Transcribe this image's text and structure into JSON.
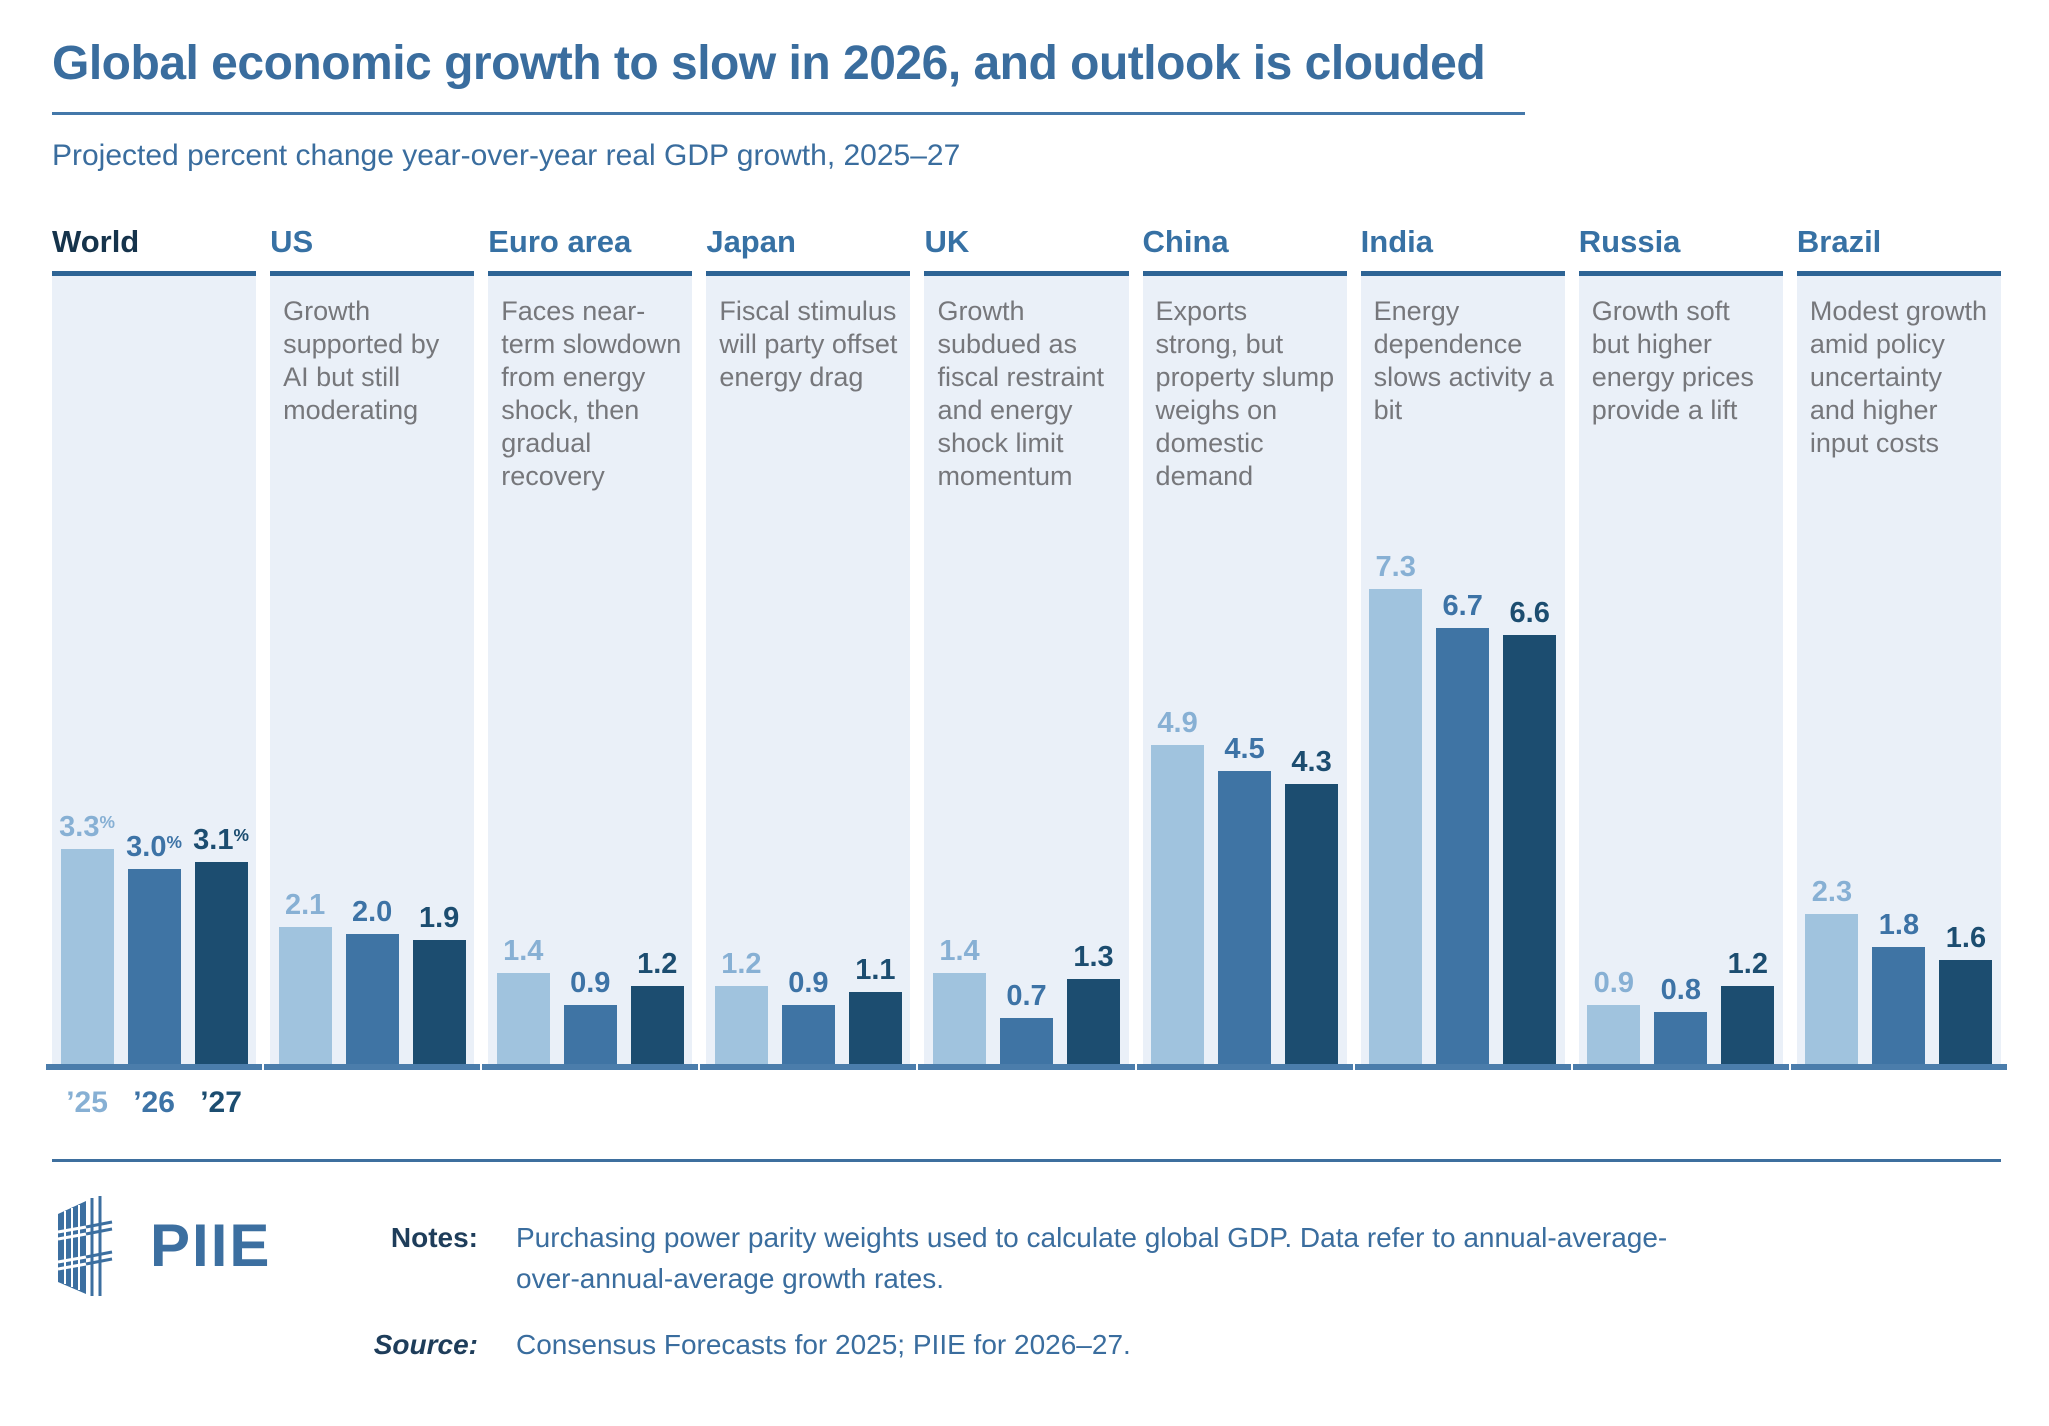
{
  "chart_data": {
    "type": "bar",
    "title": "Global economic growth to slow in 2026, and outlook is clouded",
    "subtitle": "Projected percent change year-over-year real GDP growth, 2025–27",
    "unit": "percent",
    "categories": [
      "World",
      "US",
      "Euro area",
      "Japan",
      "UK",
      "China",
      "India",
      "Russia",
      "Brazil"
    ],
    "notes": [
      "",
      "Growth supported by AI but still moderating",
      "Faces near-term slowdown from energy shock, then gradual recovery",
      "Fiscal stimulus will party offset energy drag",
      "Growth subdued as fiscal restraint and energy shock limit momentum",
      "Exports strong, but property slump weighs on domestic demand",
      "Energy dependence slows activity a bit",
      "Growth soft but higher energy prices provide a lift",
      "Modest growth amid policy uncertainty and higher input costs"
    ],
    "series": [
      {
        "name": "’25",
        "year": 2025,
        "values": [
          3.3,
          2.1,
          1.4,
          1.2,
          1.4,
          4.9,
          7.3,
          0.9,
          2.3
        ],
        "color": "#a0c3de",
        "label_color": "#87b0d4"
      },
      {
        "name": "’26",
        "year": 2026,
        "values": [
          3.0,
          2.0,
          0.9,
          0.9,
          0.7,
          4.5,
          6.7,
          0.8,
          1.8
        ],
        "color": "#3f74a4",
        "label_color": "#3d73a6"
      },
      {
        "name": "’27",
        "year": 2027,
        "values": [
          3.1,
          1.9,
          1.2,
          1.1,
          1.3,
          4.3,
          6.6,
          1.2,
          1.6
        ],
        "color": "#1c4d70",
        "label_color": "#1c4d70"
      }
    ],
    "year_labels": [
      "’25",
      "’26",
      "’27"
    ],
    "percent_suffix_categories": [
      "World"
    ],
    "ylim": [
      0,
      7.5
    ],
    "grid": false,
    "value_labels": true,
    "legend_position": "below-first-column"
  },
  "colors": {
    "accent_blue": "#3a6d9e",
    "panel_background": "#eaf0f8",
    "panel_top_border": "#2e6495",
    "axis_line": "#4b7dab",
    "world_header": "#15334b",
    "country_header": "#3771a4",
    "note_gray": "#76777b",
    "footer_label_navy": "#1e3d5a",
    "logo_blue": "#3c6fa0"
  },
  "footer": {
    "logo_text": "PIIE",
    "notes_label": "Notes:",
    "notes": "Purchasing power parity weights used to calculate global GDP. Data refer to annual-average-over-annual-average growth rates.",
    "source_label": "Source:",
    "source": "Consensus Forecasts for 2025; PIIE for 2026–27."
  }
}
